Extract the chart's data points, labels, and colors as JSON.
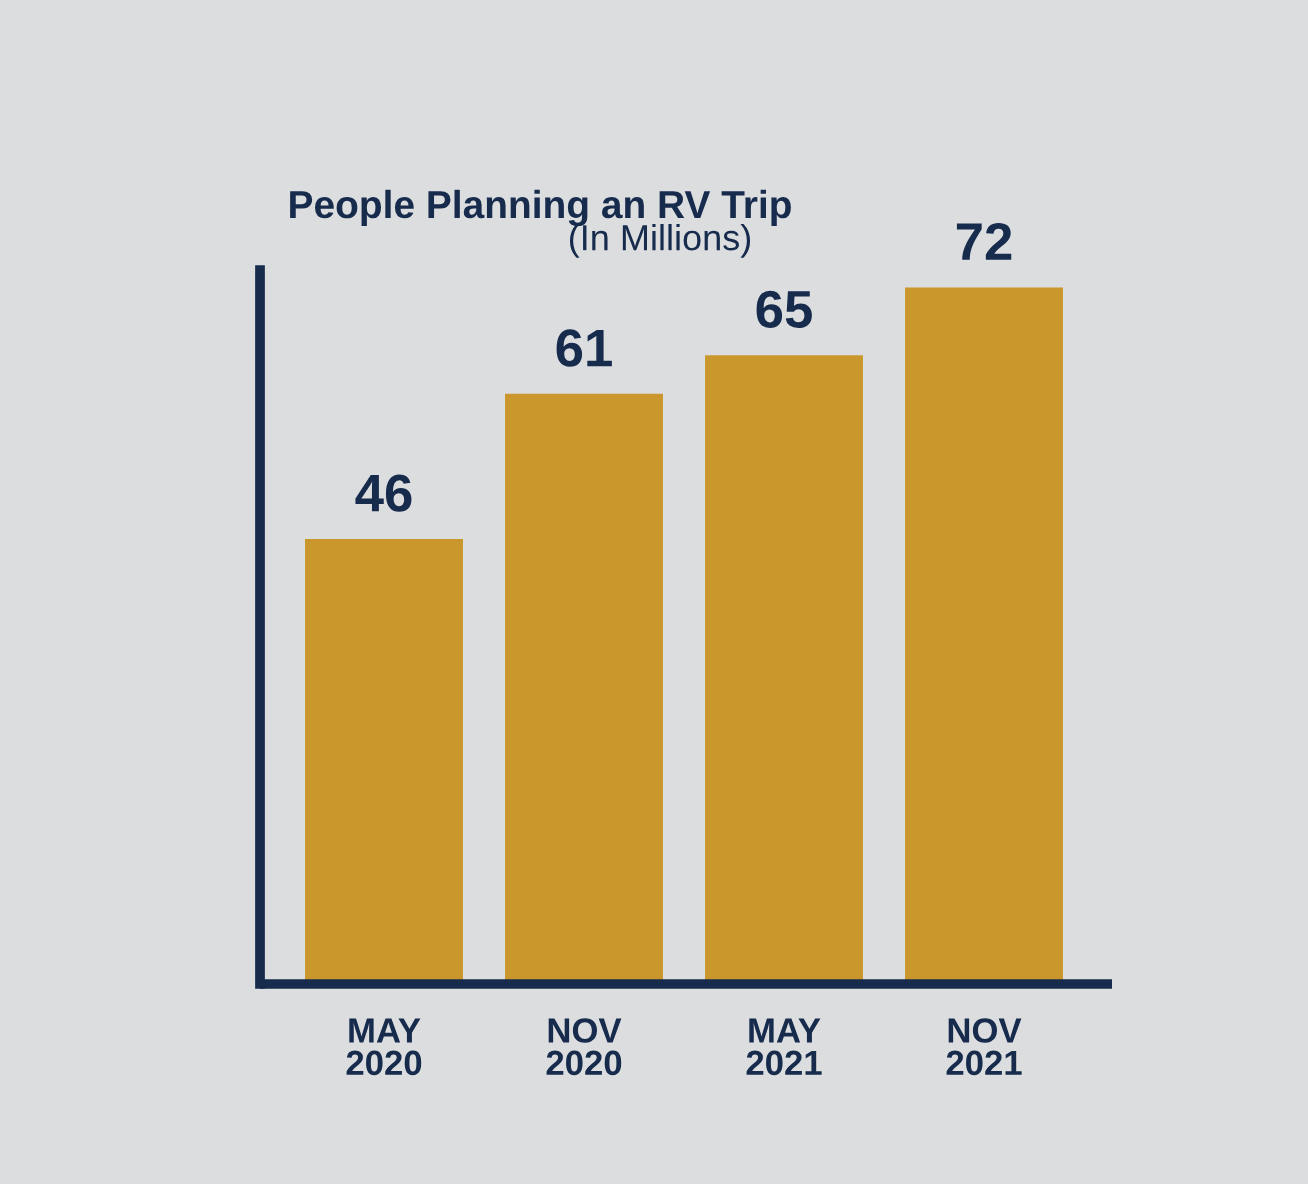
{
  "chart_data": {
    "type": "bar",
    "title": "People Planning an RV Trip",
    "subtitle": "(In Millions)",
    "categories": [
      "MAY\n2020",
      "NOV\n2020",
      "MAY\n2021",
      "NOV\n2021"
    ],
    "values": [
      46,
      61,
      65,
      72
    ],
    "color": "#c9972b",
    "data_labels": true,
    "grid": false,
    "tick_labels": "x"
  }
}
